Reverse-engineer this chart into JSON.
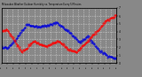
{
  "title": "Milwaukee Weather Outdoor Humidity vs. Temperature Every 5 Minutes",
  "bg_color": "#888888",
  "plot_bg_color": "#888888",
  "grid_color": "#aaaaaa",
  "red_color": "#ff0000",
  "blue_color": "#0000dd",
  "ylim": [
    0,
    100
  ],
  "n_points": 200,
  "figsize": [
    1.6,
    0.87
  ],
  "dpi": 100,
  "right_ytick_labels": [
    "7",
    "6",
    "5",
    "4",
    "3",
    "2",
    "1",
    "0"
  ],
  "right_ytick_positions": [
    100,
    85,
    71,
    57,
    43,
    29,
    14,
    0
  ]
}
